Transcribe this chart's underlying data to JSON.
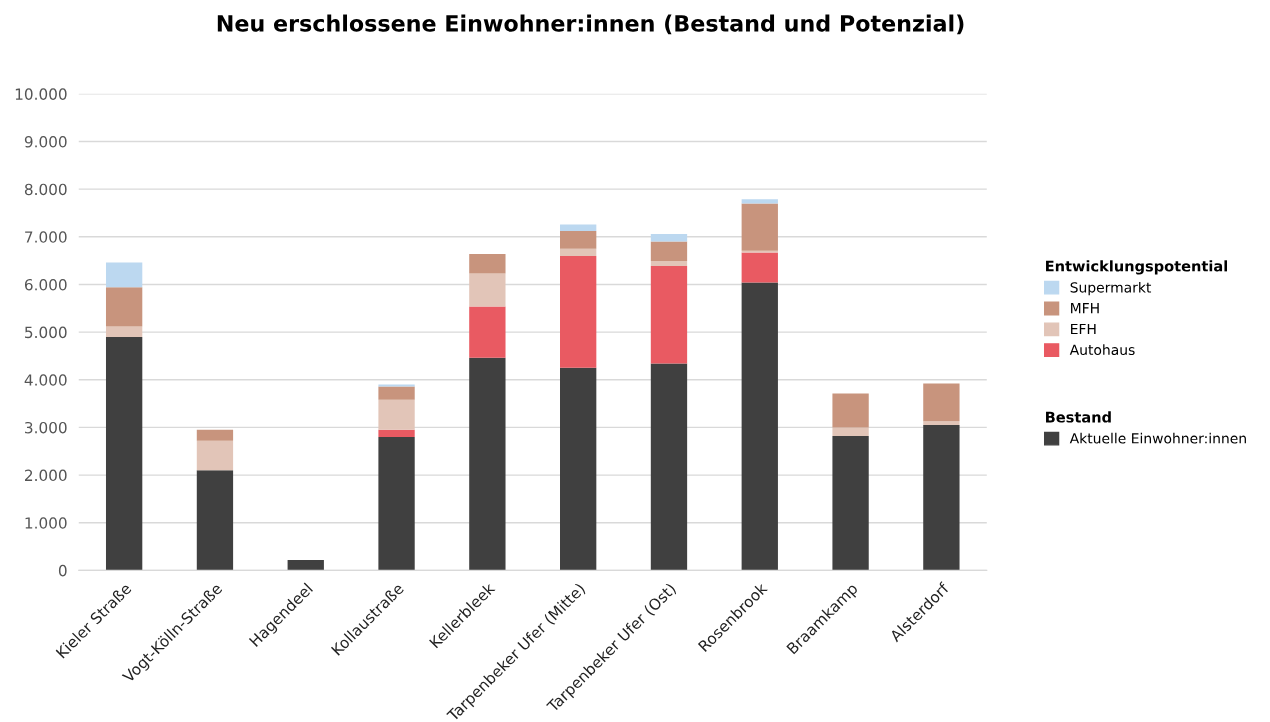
{
  "chart_data": {
    "type": "bar",
    "title": "Neu erschlossene Einwohner:innen (Bestand und Potenzial)",
    "categories": [
      "Kieler Straße",
      "Vogt-Kölln-Straße",
      "Hagendeel",
      "Kollaustraße",
      "Kellerbleek",
      "Tarpenbeker Ufer (Mitte)",
      "Tarpenbeker Ufer (Ost)",
      "Rosenbrook",
      "Braamkamp",
      "Alsterdorf"
    ],
    "stacked": true,
    "series": [
      {
        "name": "Aktuelle Einwohner:innen",
        "color": "#404040",
        "values": [
          4900,
          2100,
          220,
          2800,
          4460,
          4250,
          4340,
          6040,
          2820,
          3050
        ]
      },
      {
        "name": "Autohaus",
        "color": "#e95a62",
        "values": [
          0,
          0,
          0,
          150,
          1080,
          2350,
          2050,
          630,
          0,
          0
        ]
      },
      {
        "name": "EFH",
        "color": "#e2c5b8",
        "values": [
          220,
          620,
          0,
          630,
          690,
          150,
          100,
          40,
          180,
          80
        ]
      },
      {
        "name": "MFH",
        "color": "#c8947d",
        "values": [
          820,
          230,
          0,
          280,
          410,
          370,
          410,
          990,
          710,
          790
        ]
      },
      {
        "name": "Supermarkt",
        "color": "#bcd8f0",
        "values": [
          520,
          0,
          0,
          40,
          0,
          140,
          160,
          90,
          0,
          0
        ]
      }
    ],
    "ylim": [
      0,
      10000
    ],
    "yticks": [
      0,
      {
        "value": 1000,
        "label": "1.000"
      },
      {
        "value": 2000,
        "label": "2.000"
      },
      {
        "value": 3000,
        "label": "3.000"
      },
      {
        "value": 4000,
        "label": "4.000"
      },
      {
        "value": 5000,
        "label": "5.000"
      },
      {
        "value": 6000,
        "label": "6.000"
      },
      {
        "value": 7000,
        "label": "7.000"
      },
      {
        "value": 8000,
        "label": "8.000"
      },
      {
        "value": 9000,
        "label": "9.000"
      },
      {
        "value": 10000,
        "label": "10.000"
      }
    ],
    "grid": "y",
    "legend": "right",
    "legend_title": "Entwicklungspotential",
    "annotations": [
      "Bestand"
    ]
  }
}
